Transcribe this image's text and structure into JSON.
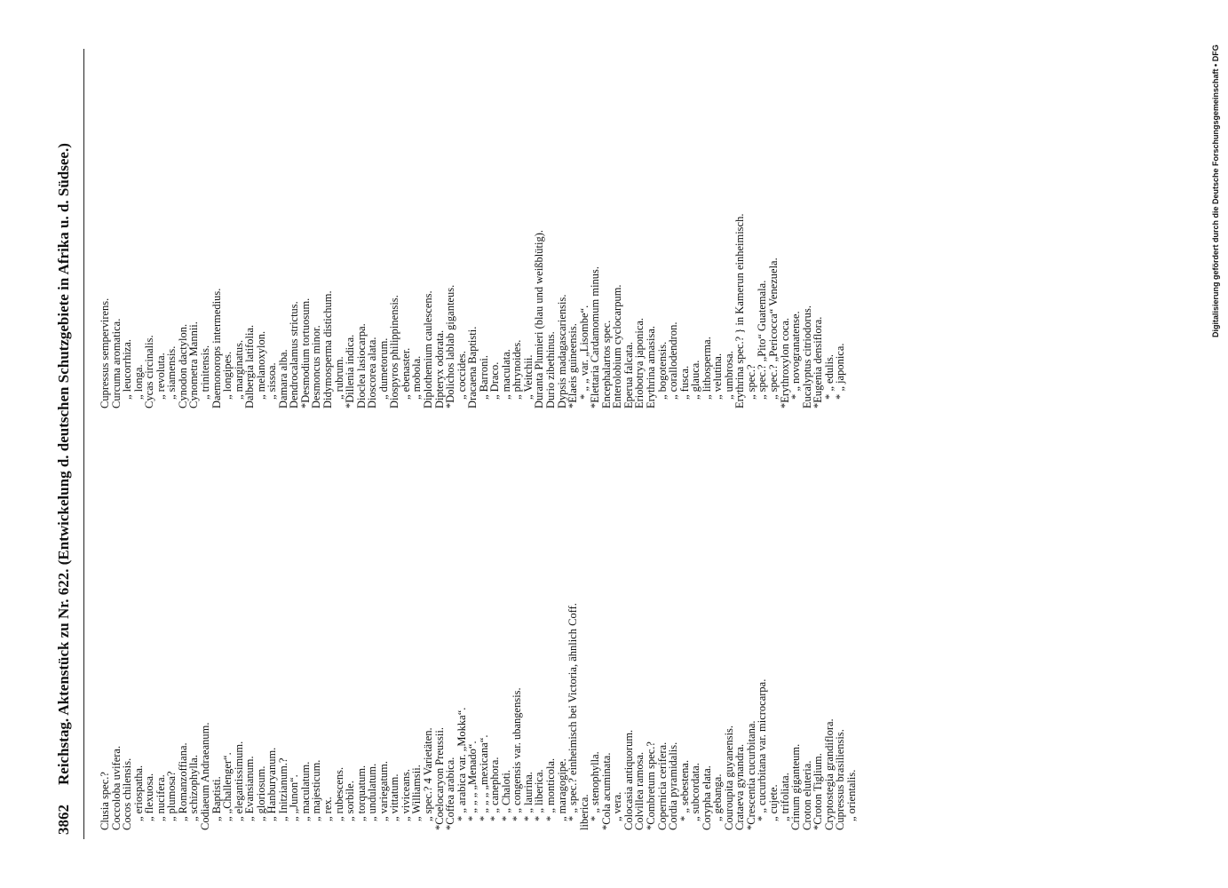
{
  "header": {
    "page_number": "3862",
    "title": "Reichstag. Aktenstück zu Nr. 622. (Entwickelung d. deutschen Schutzgebiete in Afrika u. d. Südsee.)"
  },
  "columns": [
    [
      "Clusia spec.?",
      "Coccoloba uvifera.",
      "Cocos chilensis.",
      "„ eriospatha.",
      "„ flexuosa.",
      "„ nucifera.",
      "„ plumosa?",
      "„ Romanzoffiana.",
      "„ schizophylla.",
      "Codiaeum Andraeanum.",
      "„ Baptisti.",
      "„ „Challenger“.",
      "„ elegantissimum.",
      "„ Evansianum.",
      "„ gloriosum.",
      "„ Hanburyanum.",
      "„ Initzianum.?",
      "„ „Junon“.",
      "„ maculatum.",
      "„ majesticum.",
      "„ rex.",
      "„ rubescens.",
      "„ sorbile.",
      "„ torquatum.",
      "„ undulatum.",
      "„ variegatum.",
      "„ vittatum.",
      "„ viviceans.",
      "„ Williamsii.",
      "„ spec.? 4 Varietäten.",
      "*Coelocaryon Preussii.",
      "*Coffea arabica.",
      "* „ arabica var. „Mokka“.",
      "* „ „ „ „Menado“.",
      "* „ „ „ „mexicana“.",
      "* „ canephora.",
      "* „ Chaloti.",
      "* „ congensis var. ubangensis.",
      "* „ laurina.",
      "* „ liberica.",
      "* „ monticola.",
      "„ maragogipe.",
      "* „ spec.? einheimisch bei Victoria, ähnlich Coff.",
      "liberica.",
      "* „ stenophylla.",
      "*Cola acuminata.",
      "„ vera.",
      "Colocasia antiquorum.",
      "Colvillea ramosa.",
      "*Combretum spec.?",
      "Copernicia cerifera.",
      "Cordia pyramidalis.",
      "* „ sebestena.",
      "„ subcordata.",
      "Corypha elata.",
      "„ gebanga.",
      "Couroupita guyanensis.",
      "Crataeva gynandra.",
      "*Crescentia cucurbitana.",
      "* „ cucurbitana var. microcarpa.",
      "„ cujete.",
      "„ trifoliata.",
      "Crinum giganteum.",
      "Croton eluteria.",
      "*Croton Tiglium.",
      "Cryptostegia grandiflora.",
      "Cupressus brasiliensis.",
      "„ orientalis."
    ],
    [
      "Cupressus sempervirens.",
      "Curcuma aromatica.",
      "„ leucorrhiza.",
      "„ longa.",
      "Cycas circinalis.",
      "„ revoluta.",
      "„ siamensis.",
      "Cynodon dactylon.",
      "Cynometra Mannii.",
      "„ trinitensis.",
      "Daemonorops intermedius.",
      "„ longipes.",
      "„ marginatus.",
      "Dalbergia latifolia.",
      "„ melanoxylon.",
      "„ sissoa.",
      "Damara alba.",
      "Dendrocalamus strictus.",
      "*Desmodium tortuosum.",
      "Desmoncus minor.",
      "Didymosperma distichum.",
      "„ rubrum.",
      "*Dillenia indica.",
      "Dioclea lasiocarpa.",
      "Dioscorea alata.",
      "„ dumetorum.",
      "Diospyros philippinensis.",
      "„ ebenaster.",
      "„ mobola.",
      "Diplothemium caulescens.",
      "Dipteryx odorata.",
      "*Dolichos lablab giganteus.",
      "„ coccides.",
      "Dracaena Baptisti.",
      "„ Barroni.",
      "„ Draco.",
      "„ maculata.",
      "„ phrynoides.",
      "„ Veitchii.",
      "Duranta Plumieri (blau und weißblütig).",
      "Durio zibethinus.",
      "Dypsis madagascariensis.",
      "*Elaeis guineensis.",
      "* „ „ var. „Lisombe“.",
      "*Elettaria Cardamomum minus.",
      "Encephalartos spec.",
      "Enterolobium cyclocarpum.",
      "Eperua falcata.",
      "Eriobotrya japonica.",
      "Erythrina amasisa.",
      "„ bogotensis.",
      "„ corallodendron.",
      "„ fusca.",
      "„ glauca.",
      "„ lithosperma.",
      "„ velutina.",
      "„ umbrosa.",
      "Erythrina spec.? } in Kamerun einheimisch.",
      "„ spec.?",
      "„ spec.? „Pito“ Guatemala.",
      "„ spec.? „Pericocca“ Venezuela.",
      "*Erythroxylon coca.",
      "* „ novogranatense.",
      "Eucalyptus citriodorus.",
      "*Eugenia densiflora.",
      "* „ edulis.",
      "* „ japonica."
    ]
  ],
  "footer": {
    "credit": "Digitalisierung gefördert durch die Deutsche Forschungsgemeinschaft • DFG"
  }
}
